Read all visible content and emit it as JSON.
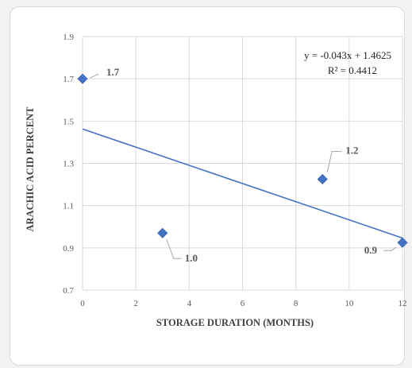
{
  "chart_data": {
    "type": "scatter",
    "xlabel": "STORAGE DURATION (MONTHS)",
    "ylabel": "ARACHIC ACID PERCENT",
    "xlim": [
      0,
      12
    ],
    "ylim": [
      0.7,
      1.9
    ],
    "x_ticks": [
      "0",
      "2",
      "4",
      "6",
      "8",
      "10",
      "12"
    ],
    "y_ticks": [
      "0.7",
      "0.9",
      "1.1",
      "1.3",
      "1.5",
      "1.7",
      "1.9"
    ],
    "grid": true,
    "points": [
      {
        "x": 0,
        "y": 1.7,
        "label": "1.7"
      },
      {
        "x": 3,
        "y": 0.97,
        "label": "1.0"
      },
      {
        "x": 9,
        "y": 1.225,
        "label": "1.2"
      },
      {
        "x": 12,
        "y": 0.925,
        "label": "0.9"
      }
    ],
    "trendline": {
      "type": "linear",
      "slope": -0.043,
      "intercept": 1.4625,
      "equation": "y = -0.043x + 1.4625",
      "r_squared": "R² = 0.4412"
    },
    "colors": {
      "marker": "#4472c4",
      "trendline": "#4472c4",
      "grid": "#d9d9d9",
      "leader": "#a6a6a6"
    }
  }
}
